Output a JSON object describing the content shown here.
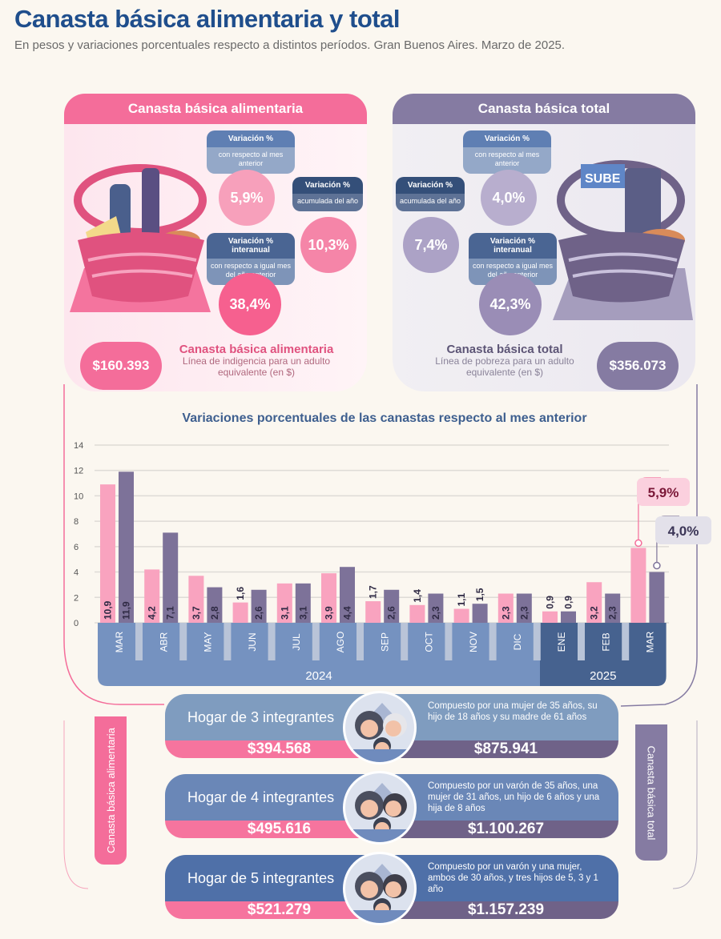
{
  "header": {
    "title": "Canasta básica alimentaria y total",
    "subtitle": "En pesos y variaciones porcentuales respecto a distintos períodos. Gran Buenos Aires. Marzo de 2025."
  },
  "cba": {
    "title": "Canasta básica alimentaria",
    "var_mensual": {
      "label": "Variación %",
      "sub": "con respecto al mes anterior",
      "value": "5,9%"
    },
    "var_acum": {
      "label": "Variación %",
      "sub": "acumulada del año",
      "value": "10,3%"
    },
    "var_interanual": {
      "label": "Variación % interanual",
      "sub": "con respecto a igual mes del año anterior",
      "value": "38,4%"
    },
    "price": "$160.393",
    "price_title": "Canasta básica alimentaria",
    "price_desc": "Línea de indigencia para un adulto equivalente (en $)",
    "color": "#f46d9a"
  },
  "cbt": {
    "title": "Canasta básica total",
    "var_mensual": {
      "label": "Variación %",
      "sub": "con respecto al mes anterior",
      "value": "4,0%"
    },
    "var_acum": {
      "label": "Variación %",
      "sub": "acumulada del año",
      "value": "7,4%"
    },
    "var_interanual": {
      "label": "Variación % interanual",
      "sub": "con respecto a igual mes del año anterior",
      "value": "42,3%"
    },
    "price": "$356.073",
    "price_title": "Canasta básica total",
    "price_desc": "Línea de pobreza para un adulto equivalente (en $)",
    "color": "#857ba2",
    "basket_label": "SUBE"
  },
  "chart_data": {
    "type": "bar",
    "title": "Variaciones porcentuales de las canastas respecto al mes anterior",
    "categories": [
      "MAR",
      "ABR",
      "MAY",
      "JUN",
      "JUL",
      "AGO",
      "SEP",
      "OCT",
      "NOV",
      "DIC",
      "ENE",
      "FEB",
      "MAR"
    ],
    "year_groups": [
      {
        "label": "2024",
        "count": 10,
        "color": "#7592c0"
      },
      {
        "label": "2025",
        "count": 3,
        "color": "#46628f"
      }
    ],
    "series": [
      {
        "key": "cba",
        "color": "#f9a3bf",
        "values": [
          10.9,
          4.2,
          3.7,
          1.6,
          3.1,
          3.9,
          1.7,
          1.4,
          1.1,
          2.3,
          0.9,
          3.2,
          5.9
        ],
        "labels": [
          "10,9",
          "4,2",
          "3,7",
          "1,6",
          "3,1",
          "3,9",
          "1,7",
          "1,4",
          "1,1",
          "2,3",
          "0,9",
          "3,2",
          ""
        ]
      },
      {
        "key": "cbt",
        "color": "#7d7299",
        "values": [
          11.9,
          7.1,
          2.8,
          2.6,
          3.1,
          4.4,
          2.6,
          2.3,
          1.5,
          2.3,
          0.9,
          2.3,
          4.0
        ],
        "labels": [
          "11,9",
          "7,1",
          "2,8",
          "2,6",
          "3,1",
          "4,4",
          "2,6",
          "2,3",
          "1,5",
          "2,3",
          "0,9",
          "2,3",
          ""
        ]
      }
    ],
    "yticks": [
      0,
      2,
      4,
      6,
      8,
      10,
      12,
      14
    ],
    "ylim": [
      0,
      14
    ],
    "grid": true,
    "callouts": [
      {
        "series": "cba",
        "label": "5,9%"
      },
      {
        "series": "cbt",
        "label": "4,0%"
      }
    ]
  },
  "side_tabs": {
    "left": "Canasta básica alimentaria",
    "right": "Canasta básica total"
  },
  "households": [
    {
      "name": "Hogar de 3 integrantes",
      "desc": "Compuesto por una mujer de 35 años, su hijo de 18 años y su madre de 61 años",
      "cba": "$394.568",
      "cbt": "$875.941",
      "color": "#7f9cbf"
    },
    {
      "name": "Hogar de 4 integrantes",
      "desc": "Compuesto por un varón de 35 años, una mujer de 31 años, un hijo de 6 años y una hija de 8 años",
      "cba": "$495.616",
      "cbt": "$1.100.267",
      "color": "#6a87b7"
    },
    {
      "name": "Hogar de 5 integrantes",
      "desc": "Compuesto por un varón y una mujer, ambos de 30 años, y tres hijos de 5, 3 y 1 año",
      "cba": "$521.279",
      "cbt": "$1.157.239",
      "color": "#4f70a8"
    }
  ]
}
